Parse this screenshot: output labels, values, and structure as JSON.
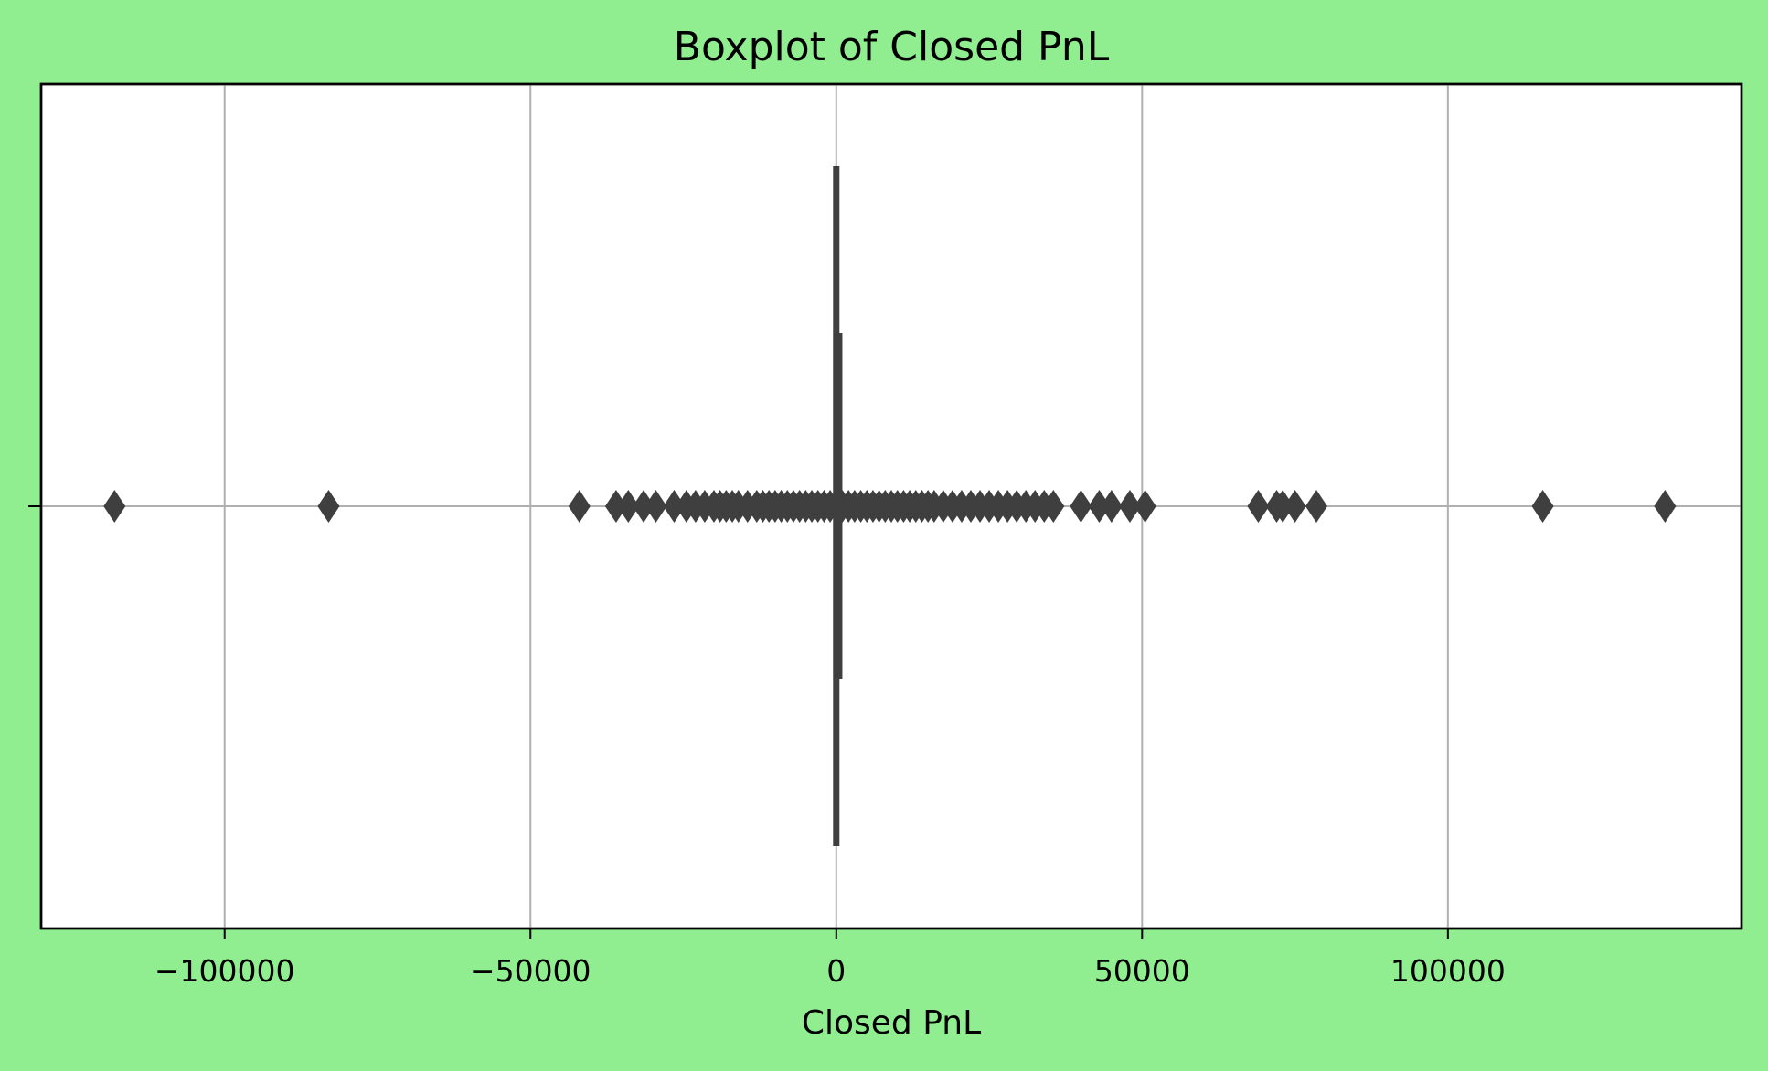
{
  "chart_data": {
    "type": "box",
    "orientation": "horizontal",
    "title": "Boxplot of Closed PnL",
    "xlabel": "Closed PnL",
    "ylabel": "",
    "xlim": [
      -130000,
      148000
    ],
    "xticks": [
      -100000,
      -50000,
      0,
      50000,
      100000
    ],
    "xtick_labels": [
      "−100000",
      "−50000",
      "0",
      "50000",
      "100000"
    ],
    "grid": true,
    "series": [
      {
        "min": -200,
        "q1": -50,
        "median": 0,
        "q3": 80,
        "max": 300,
        "fliers": [
          -118000,
          -83000,
          -42000,
          -36000,
          -34000,
          -31500,
          -29500,
          -26500,
          -24500,
          -23000,
          -21500,
          -20000,
          -19000,
          -18000,
          -17000,
          -16000,
          -14500,
          -13000,
          -12000,
          -11000,
          -10000,
          -9000,
          -8000,
          -7000,
          -6000,
          -5000,
          -4000,
          -3000,
          -2000,
          -1000,
          1000,
          2000,
          3000,
          4000,
          5000,
          6000,
          7000,
          8000,
          9000,
          10000,
          11000,
          12000,
          13000,
          14000,
          15000,
          16000,
          17500,
          19000,
          20500,
          22000,
          23500,
          25000,
          26500,
          28000,
          29500,
          31000,
          32500,
          34000,
          35500,
          40000,
          43000,
          45000,
          48000,
          50500,
          69000,
          72000,
          73000,
          75000,
          78500,
          115500,
          135500
        ]
      }
    ]
  },
  "colors": {
    "background": "#90ee90",
    "plot_area": "#ffffff",
    "box": "#3f3f3f",
    "grid": "#b0b0b0"
  }
}
